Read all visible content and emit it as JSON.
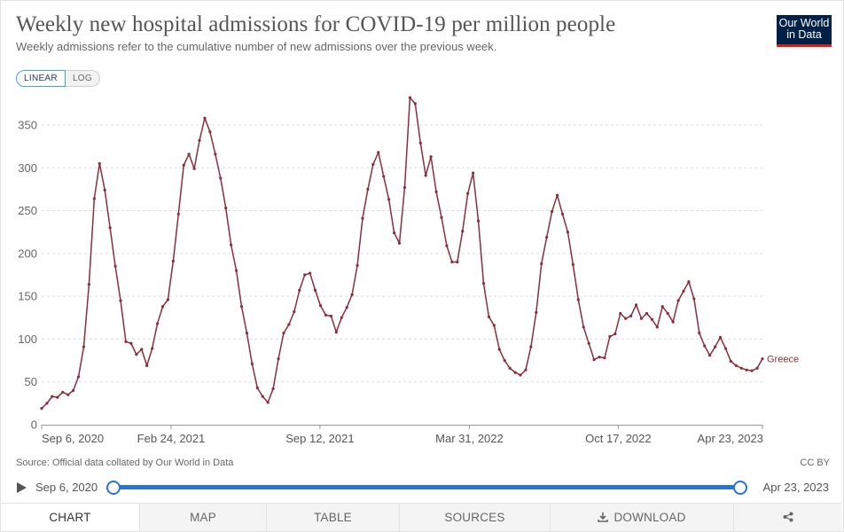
{
  "header": {
    "title": "Weekly new hospital admissions for COVID-19 per million people",
    "subtitle": "Weekly admissions refer to the cumulative number of new admissions over the previous week.",
    "logo_line1": "Our World",
    "logo_line2": "in Data"
  },
  "scale_toggle": {
    "linear": "LINEAR",
    "log": "LOG",
    "selected": "LINEAR"
  },
  "footer": {
    "source": "Source: Official data collated by Our World in Data",
    "license": "CC BY"
  },
  "timeline": {
    "start_label": "Sep 6, 2020",
    "end_label": "Apr 23, 2023",
    "start_fraction": 0,
    "end_fraction": 1
  },
  "tabs": [
    {
      "label": "CHART",
      "icon": ""
    },
    {
      "label": "MAP",
      "icon": ""
    },
    {
      "label": "TABLE",
      "icon": ""
    },
    {
      "label": "SOURCES",
      "icon": ""
    },
    {
      "label": "DOWNLOAD",
      "icon": "download-icon"
    },
    {
      "label": "",
      "icon": "share-icon"
    }
  ],
  "colors": {
    "series": "#8b2e3b",
    "accent": "#2a72d5",
    "logo_bg": "#002147",
    "logo_stripe": "#ce261e",
    "grid": "#dddddd"
  },
  "chart_data": {
    "type": "line",
    "title": "Weekly new hospital admissions for COVID-19 per million people",
    "subtitle": "Weekly admissions refer to the cumulative number of new admissions over the previous week.",
    "y_ticks": [
      0,
      50,
      100,
      150,
      200,
      250,
      300,
      350
    ],
    "ylim": [
      0,
      380
    ],
    "x_start": "Sep 6, 2020",
    "x_end": "Apr 23, 2023",
    "x_tick_labels": [
      {
        "label": "Sep 6, 2020",
        "week_index": 0
      },
      {
        "label": "Feb 24, 2021",
        "week_index": 24.6
      },
      {
        "label": "Sep 12, 2021",
        "week_index": 52.9
      },
      {
        "label": "Mar 31, 2022",
        "week_index": 81.3
      },
      {
        "label": "Oct 17, 2022",
        "week_index": 109.6
      },
      {
        "label": "Apr 23, 2023",
        "week_index": 137
      }
    ],
    "grid": true,
    "legend_placement": "end-of-line label",
    "series": [
      {
        "name": "Greece",
        "color": "#8b2e3b",
        "values": [
          19,
          25,
          33,
          32,
          38,
          35,
          40,
          56,
          91,
          164,
          264,
          305,
          274,
          230,
          185,
          145,
          97,
          95,
          82,
          88,
          69,
          89,
          118,
          138,
          146,
          191,
          246,
          303,
          316,
          299,
          332,
          358,
          342,
          316,
          288,
          253,
          210,
          180,
          138,
          107,
          71,
          43,
          33,
          26,
          42,
          77,
          107,
          117,
          132,
          157,
          175,
          177,
          157,
          139,
          128,
          127,
          108,
          125,
          137,
          152,
          186,
          241,
          275,
          304,
          318,
          290,
          263,
          224,
          212,
          277,
          382,
          375,
          329,
          291,
          313,
          272,
          242,
          209,
          190,
          190,
          226,
          270,
          294,
          238,
          165,
          126,
          116,
          88,
          75,
          66,
          61,
          58,
          64,
          91,
          131,
          188,
          219,
          249,
          268,
          246,
          225,
          187,
          146,
          114,
          95,
          76,
          79,
          78,
          103,
          106,
          130,
          124,
          127,
          140,
          124,
          130,
          123,
          114,
          138,
          130,
          120,
          145,
          156,
          167,
          147,
          107,
          92,
          81,
          91,
          102,
          89,
          74,
          69,
          66,
          64,
          63,
          66,
          77
        ]
      }
    ]
  }
}
